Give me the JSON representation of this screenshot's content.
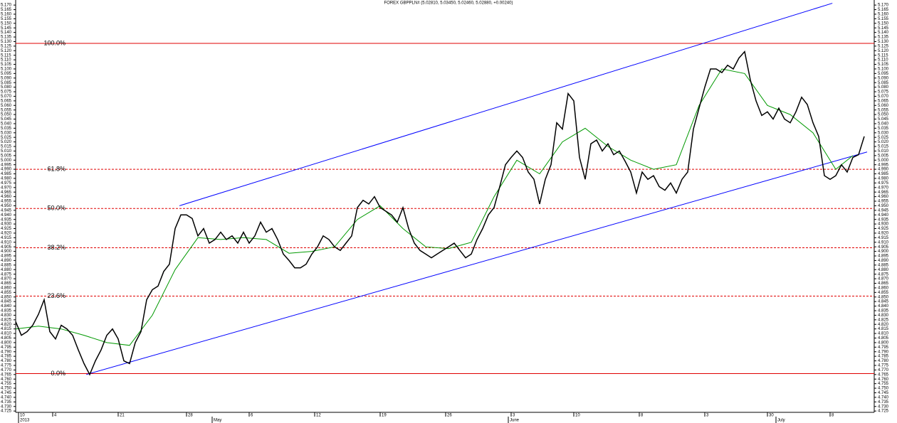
{
  "chart_data": {
    "type": "line",
    "title": "FOREX GBPPLN# (5.02810, 5.03450, 5.02460, 5.02880, +0.00240)",
    "xlim": [
      0,
      150.75
    ],
    "ylim": [
      4.722,
      5.174
    ],
    "xticks": [
      {
        "value": 0.5,
        "label": "10"
      },
      {
        "value": 6.5,
        "label": "4"
      },
      {
        "value": 18,
        "label": "21"
      },
      {
        "value": 30,
        "label": "28"
      },
      {
        "value": 41,
        "label": "6"
      },
      {
        "value": 52.5,
        "label": "12"
      },
      {
        "value": 64,
        "label": "19"
      },
      {
        "value": 75.5,
        "label": "26"
      },
      {
        "value": 87,
        "label": "3"
      },
      {
        "value": 98,
        "label": "10"
      },
      {
        "value": 109.5,
        "label": "8"
      },
      {
        "value": 121,
        "label": "3"
      },
      {
        "value": 132,
        "label": "30"
      },
      {
        "value": 143,
        "label": "8"
      }
    ],
    "periods": [
      {
        "value": 0.5,
        "label": "2013"
      },
      {
        "value": 34.5,
        "label": "May"
      },
      {
        "value": 86.5,
        "label": "June"
      },
      {
        "value": 133.5,
        "label": "July"
      }
    ],
    "yticks": [
      4.725,
      {
        "value": 4.73,
        "label": "4.730"
      },
      4.735,
      {
        "value": 4.74,
        "label": "4.740"
      },
      4.745,
      {
        "value": 4.75,
        "label": "4.750"
      },
      4.755,
      {
        "value": 4.76,
        "label": "4.760"
      },
      4.765,
      {
        "value": 4.77,
        "label": "4.770"
      },
      4.775,
      {
        "value": 4.78,
        "label": "4.780"
      },
      4.785,
      {
        "value": 4.79,
        "label": "4.790"
      },
      4.795,
      {
        "value": 4.8,
        "label": "4.800"
      },
      4.805,
      {
        "value": 4.81,
        "label": "4.810"
      },
      4.815,
      {
        "value": 4.82,
        "label": "4.820"
      },
      4.825,
      {
        "value": 4.83,
        "label": "4.830"
      },
      4.835,
      {
        "value": 4.84,
        "label": "4.840"
      },
      4.845,
      {
        "value": 4.85,
        "label": "4.850"
      },
      4.855,
      {
        "value": 4.86,
        "label": "4.860"
      },
      4.865,
      {
        "value": 4.87,
        "label": "4.870"
      },
      4.875,
      {
        "value": 4.88,
        "label": "4.880"
      },
      4.885,
      {
        "value": 4.89,
        "label": "4.890"
      },
      4.895,
      {
        "value": 4.9,
        "label": "4.900"
      },
      4.905,
      {
        "value": 4.91,
        "label": "4.910"
      },
      4.915,
      {
        "value": 4.92,
        "label": "4.920"
      },
      4.925,
      {
        "value": 4.93,
        "label": "4.930"
      },
      4.935,
      {
        "value": 4.94,
        "label": "4.940"
      },
      4.945,
      {
        "value": 4.95,
        "label": "4.950"
      },
      4.955,
      {
        "value": 4.96,
        "label": "4.960"
      },
      4.965,
      {
        "value": 4.97,
        "label": "4.970"
      },
      4.975,
      {
        "value": 4.98,
        "label": "4.980"
      },
      4.985,
      {
        "value": 4.99,
        "label": "4.990"
      },
      4.995,
      {
        "value": 5,
        "label": "5.000"
      },
      5.005,
      {
        "value": 5.01,
        "label": "5.010"
      },
      5.015,
      {
        "value": 5.02,
        "label": "5.020"
      },
      5.025,
      {
        "value": 5.03,
        "label": "5.030"
      },
      5.035,
      {
        "value": 5.04,
        "label": "5.040"
      },
      5.045,
      {
        "value": 5.05,
        "label": "5.050"
      },
      5.055,
      {
        "value": 5.06,
        "label": "5.060"
      },
      5.065,
      {
        "value": 5.07,
        "label": "5.070"
      },
      5.075,
      {
        "value": 5.08,
        "label": "5.080"
      },
      5.085,
      {
        "value": 5.09,
        "label": "5.090"
      },
      5.095,
      {
        "value": 5.1,
        "label": "5.100"
      },
      5.105,
      {
        "value": 5.11,
        "label": "5.110"
      },
      5.115,
      {
        "value": 5.12,
        "label": "5.120"
      },
      5.125,
      {
        "value": 5.13,
        "label": "5.130"
      },
      5.135,
      {
        "value": 5.14,
        "label": "5.140"
      },
      5.145,
      {
        "value": 5.15,
        "label": "5.150"
      },
      5.155,
      {
        "value": 5.16,
        "label": "5.160"
      },
      5.165,
      {
        "value": 5.17,
        "label": "5.170"
      }
    ],
    "series": [
      {
        "color": "#000000",
        "values": [
          4.823,
          4.808,
          4.812,
          4.819,
          4.831,
          4.847,
          4.812,
          4.804,
          4.819,
          4.815,
          4.808,
          4.792,
          4.777,
          4.765,
          4.78,
          4.792,
          4.808,
          4.815,
          4.804,
          4.78,
          4.777,
          4.8,
          4.812,
          4.847,
          4.858,
          4.862,
          4.878,
          4.886,
          4.925,
          4.94,
          4.94,
          4.936,
          4.917,
          4.925,
          4.909,
          4.913,
          4.921,
          4.913,
          4.917,
          4.909,
          4.921,
          4.909,
          4.917,
          4.932,
          4.921,
          4.925,
          4.913,
          4.897,
          4.89,
          4.882,
          4.882,
          4.886,
          4.897,
          4.905,
          4.917,
          4.913,
          4.905,
          4.901,
          4.909,
          4.917,
          4.948,
          4.956,
          4.952,
          4.96,
          4.948,
          4.944,
          4.94,
          4.932,
          4.948,
          4.925,
          4.909,
          4.901,
          4.897,
          4.893,
          4.897,
          4.901,
          4.905,
          4.909,
          4.901,
          4.893,
          4.897,
          4.913,
          4.925,
          4.94,
          4.948,
          4.971,
          4.995,
          5.003,
          5.01,
          5.003,
          4.987,
          4.979,
          4.952,
          4.979,
          4.995,
          5.041,
          5.034,
          5.073,
          5.065,
          5.003,
          4.979,
          5.018,
          5.022,
          5.01,
          5.018,
          5.006,
          5.01,
          4.999,
          4.987,
          4.964,
          4.987,
          4.979,
          4.983,
          4.971,
          4.967,
          4.975,
          4.964,
          4.979,
          4.987,
          5.034,
          5.057,
          5.08,
          5.1,
          5.1,
          5.096,
          5.104,
          5.1,
          5.112,
          5.119,
          5.088,
          5.065,
          5.049,
          5.053,
          5.045,
          5.057,
          5.045,
          5.041,
          5.053,
          5.069,
          5.061,
          5.041,
          5.026,
          4.983,
          4.979,
          4.983,
          4.995,
          4.987,
          5.003,
          5.006,
          5.026
        ]
      },
      {
        "color": "#009900",
        "x": [
          0,
          4,
          8,
          12,
          16,
          20,
          24,
          28,
          32,
          36,
          40,
          44,
          48,
          52,
          56,
          60,
          64,
          68,
          72,
          76,
          80,
          84,
          88,
          92,
          96,
          100,
          104,
          108,
          112,
          116,
          120,
          124,
          128,
          132,
          136,
          140,
          144,
          147
        ],
        "values": [
          4.815,
          4.818,
          4.815,
          4.808,
          4.8,
          4.797,
          4.83,
          4.88,
          4.915,
          4.913,
          4.915,
          4.913,
          4.898,
          4.9,
          4.905,
          4.935,
          4.95,
          4.925,
          4.905,
          4.903,
          4.91,
          4.96,
          5,
          4.985,
          5.02,
          5.035,
          5.015,
          5,
          4.99,
          4.995,
          5.06,
          5.1,
          5.095,
          5.06,
          5.05,
          5.03,
          4.99,
          5.005
        ]
      }
    ],
    "trendlines": [
      {
        "color": "#0000ff",
        "x": [
          12.4,
          149.5
        ],
        "values": [
          4.765,
          5.009
        ]
      },
      {
        "color": "#0000ff",
        "x": [
          28.75,
          143.4
        ],
        "values": [
          4.95,
          5.172
        ]
      }
    ],
    "levels": [
      {
        "label": "100.0%",
        "value": 5.128,
        "dashed": false
      },
      {
        "label": "61.8%",
        "value": 4.99,
        "dashed": true
      },
      {
        "label": "50.0%",
        "value": 4.947,
        "dashed": true
      },
      {
        "label": "38.2%",
        "value": 4.904,
        "dashed": true
      },
      {
        "label": "23.6%",
        "value": 4.851,
        "dashed": true
      },
      {
        "label": "0.0%",
        "value": 4.766,
        "dashed": false
      }
    ],
    "level_color": "#e00000"
  }
}
